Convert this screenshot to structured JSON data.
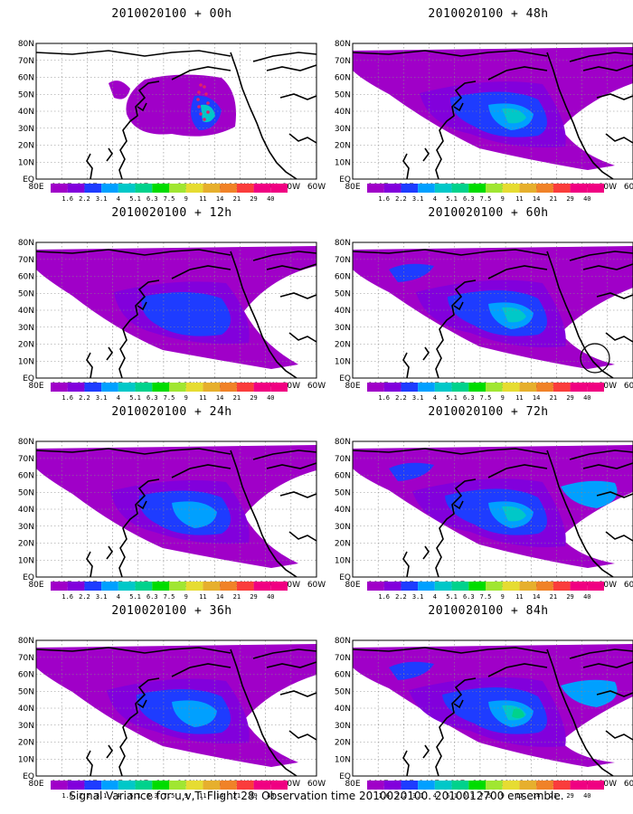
{
  "panels": [
    {
      "title": "2010020100 + 00h",
      "intensity": 0,
      "markers": "dots"
    },
    {
      "title": "2010020100 + 48h",
      "intensity": 4,
      "markers": "none"
    },
    {
      "title": "2010020100 + 12h",
      "intensity": 1,
      "markers": "none"
    },
    {
      "title": "2010020100 + 60h",
      "intensity": 5,
      "markers": "circle"
    },
    {
      "title": "2010020100 + 24h",
      "intensity": 2,
      "markers": "none"
    },
    {
      "title": "2010020100 + 72h",
      "intensity": 6,
      "markers": "none"
    },
    {
      "title": "2010020100 + 36h",
      "intensity": 3,
      "markers": "none"
    },
    {
      "title": "2010020100 + 84h",
      "intensity": 7,
      "markers": "none"
    }
  ],
  "lat_labels": [
    "80N",
    "70N",
    "60N",
    "50N",
    "40N",
    "30N",
    "20N",
    "10N",
    "EQ"
  ],
  "lon_labels": [
    "80E",
    "100E",
    "120E",
    "140E",
    "160E",
    "180",
    "160W",
    "140W",
    "120W",
    "100W",
    "80W",
    "60W"
  ],
  "colorbar": {
    "labels": [
      "1.6",
      "2.2",
      "3.1",
      "4",
      "5.1",
      "6.3",
      "7.5",
      "9",
      "11",
      "14",
      "21",
      "29",
      "40"
    ],
    "colors": [
      "#a000c8",
      "#8200dc",
      "#1e3cff",
      "#00a0ff",
      "#00c8c8",
      "#00d28c",
      "#00dc00",
      "#a0e632",
      "#e6dc32",
      "#e6af2d",
      "#f08228",
      "#fa3c3c",
      "#f00082"
    ]
  },
  "caption": "Signal Variance for u,v,T. Flight 28. Observation time 2010020100. 2010012700 ensemble."
}
